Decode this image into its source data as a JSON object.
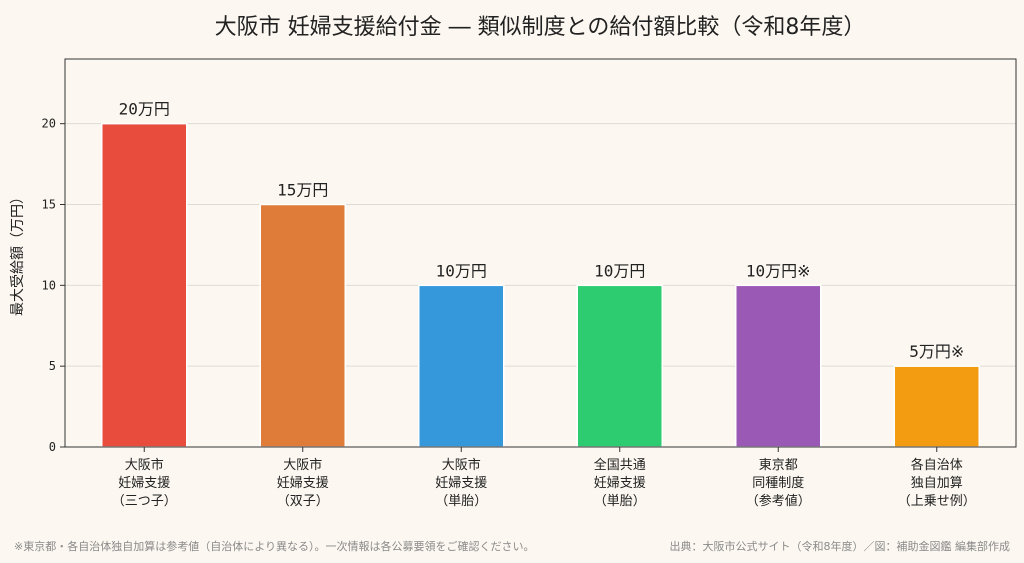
{
  "chart_data": {
    "type": "bar",
    "title": "大阪市 妊婦支援給付金 ― 類似制度との給付額比較（令和8年度）",
    "ylabel": "最大受給額（万円）",
    "xlabel": "",
    "ylim": [
      0,
      24
    ],
    "yticks": [
      0,
      5,
      10,
      15,
      20
    ],
    "grid": true,
    "categories": [
      [
        "大阪市",
        "妊婦支援",
        "（三つ子）"
      ],
      [
        "大阪市",
        "妊婦支援",
        "（双子）"
      ],
      [
        "大阪市",
        "妊婦支援",
        "（単胎）"
      ],
      [
        "全国共通",
        "妊婦支援",
        "（単胎）"
      ],
      [
        "東京都",
        "同種制度",
        "（参考値）"
      ],
      [
        "各自治体",
        "独自加算",
        "（上乗せ例）"
      ]
    ],
    "values": [
      20,
      15,
      10,
      10,
      10,
      5
    ],
    "data_labels": [
      "20万円",
      "15万円",
      "10万円",
      "10万円",
      "10万円※",
      "5万円※"
    ],
    "colors": [
      "#e74c3c",
      "#e07c3a",
      "#3498db",
      "#2ecc71",
      "#9b59b6",
      "#f39c12"
    ],
    "footnote": "※東京都・各自治体独自加算は参考値（自治体により異なる）。一次情報は各公募要領をご確認ください。",
    "source": "出典：大阪市公式サイト（令和8年度）／図：補助金図鑑 編集部作成"
  }
}
